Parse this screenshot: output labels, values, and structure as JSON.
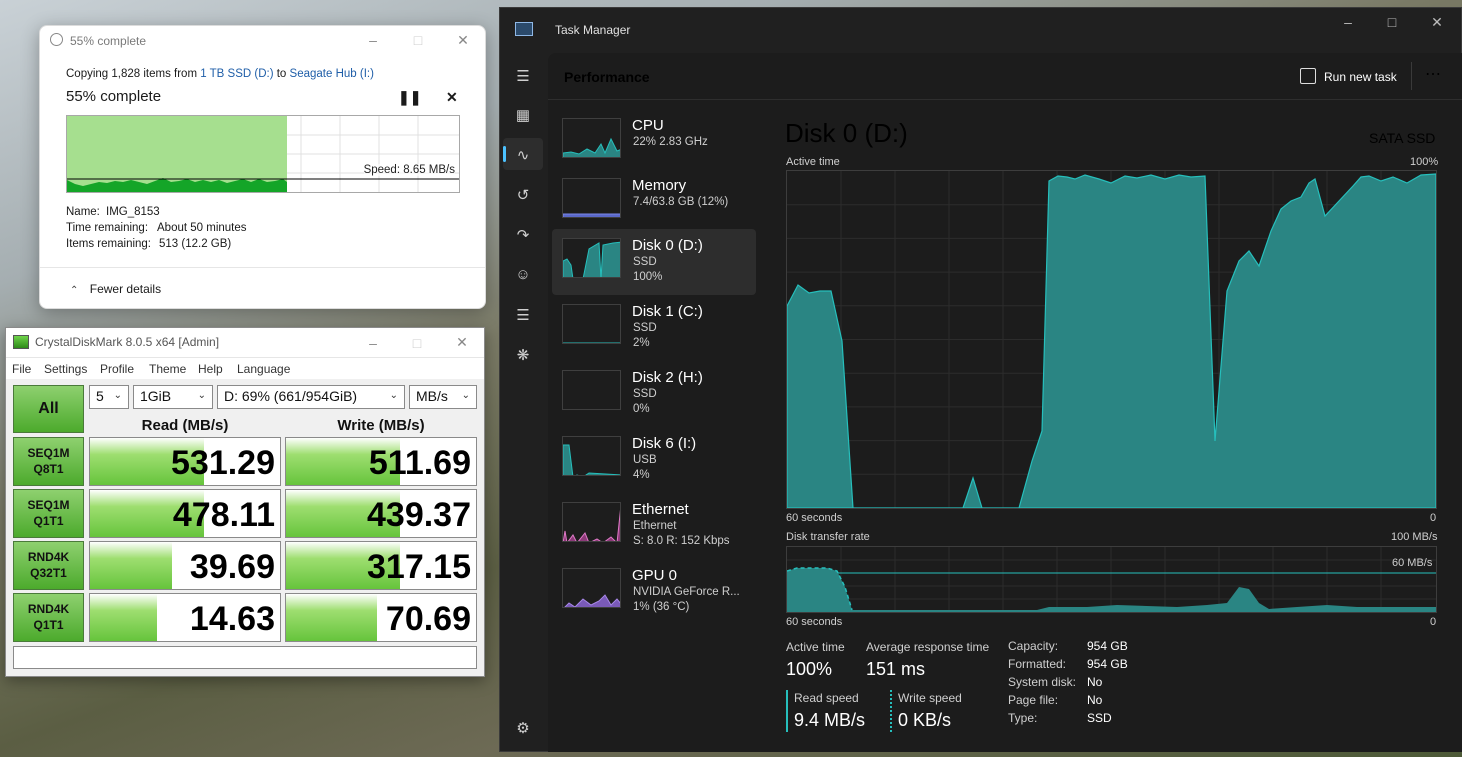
{
  "copy_dialog": {
    "window_title": "55% complete",
    "copying_prefix": "Copying 1,828 items from",
    "source": "1 TB SSD (D:)",
    "to_word": "to",
    "destination": "Seagate Hub (I:)",
    "status": "55% complete",
    "progress_fraction": 0.55,
    "speed": "Speed: 8.65 MB/s",
    "name_label": "Name:",
    "name_value": "IMG_8153",
    "time_label": "Time remaining:",
    "time_value": "About 50 minutes",
    "items_label": "Items remaining:",
    "items_value": "513 (12.2 GB)",
    "fewer_details": "Fewer details"
  },
  "cdm": {
    "window_title": "CrystalDiskMark 8.0.5 x64 [Admin]",
    "menu": [
      "File",
      "Settings",
      "Profile",
      "Theme",
      "Help",
      "Language"
    ],
    "all_button": "All",
    "count": "5",
    "size": "1GiB",
    "drive": "D: 69% (661/954GiB)",
    "unit": "MB/s",
    "read_header": "Read (MB/s)",
    "write_header": "Write (MB/s)",
    "rows": [
      {
        "t1": "SEQ1M",
        "t2": "Q8T1",
        "read": "531.29",
        "write": "511.69",
        "read_fill": 0.6,
        "write_fill": 0.6
      },
      {
        "t1": "SEQ1M",
        "t2": "Q1T1",
        "read": "478.11",
        "write": "439.37",
        "read_fill": 0.6,
        "write_fill": 0.6
      },
      {
        "t1": "RND4K",
        "t2": "Q32T1",
        "read": "39.69",
        "write": "317.15",
        "read_fill": 0.43,
        "write_fill": 0.6
      },
      {
        "t1": "RND4K",
        "t2": "Q1T1",
        "read": "14.63",
        "write": "70.69",
        "read_fill": 0.35,
        "write_fill": 0.48
      }
    ]
  },
  "tm": {
    "window_title": "Task Manager",
    "page_title": "Performance",
    "run_new_task": "Run new task",
    "devices": [
      {
        "name": "CPU",
        "l1": "22% 2.83 GHz",
        "l2": ""
      },
      {
        "name": "Memory",
        "l1": "7.4/63.8 GB (12%)",
        "l2": ""
      },
      {
        "name": "Disk 0 (D:)",
        "l1": "SSD",
        "l2": "100%"
      },
      {
        "name": "Disk 1 (C:)",
        "l1": "SSD",
        "l2": "2%"
      },
      {
        "name": "Disk 2 (H:)",
        "l1": "SSD",
        "l2": "0%"
      },
      {
        "name": "Disk 6 (I:)",
        "l1": "USB",
        "l2": "4%"
      },
      {
        "name": "Ethernet",
        "l1": "Ethernet",
        "l2": "S: 8.0 R: 152 Kbps"
      },
      {
        "name": "GPU 0",
        "l1": "NVIDIA GeForce R...",
        "l2": "1% (36 °C)"
      }
    ],
    "detail_title": "Disk 0 (D:)",
    "disk_type": "SATA SSD",
    "active_time_label": "Active time",
    "active_max": "100%",
    "sixty": "60 seconds",
    "zero": "0",
    "transfer_label": "Disk transfer rate",
    "transfer_max": "100 MB/s",
    "transfer_mid": "60 MB/s",
    "stats": {
      "active_label": "Active time",
      "active_value": "100%",
      "avg_label": "Average response time",
      "avg_value": "151 ms",
      "read_label": "Read speed",
      "read_value": "9.4 MB/s",
      "write_label": "Write speed",
      "write_value": "0 KB/s"
    },
    "props": [
      {
        "k": "Capacity:",
        "v": "954 GB"
      },
      {
        "k": "Formatted:",
        "v": "954 GB"
      },
      {
        "k": "System disk:",
        "v": "No"
      },
      {
        "k": "Page file:",
        "v": "No"
      },
      {
        "k": "Type:",
        "v": "SSD"
      }
    ],
    "colors": {
      "disk": "#1e9e9b",
      "disk_fill": "#2a8583",
      "bg": "#202020",
      "panel": "#1c1c1c"
    }
  }
}
